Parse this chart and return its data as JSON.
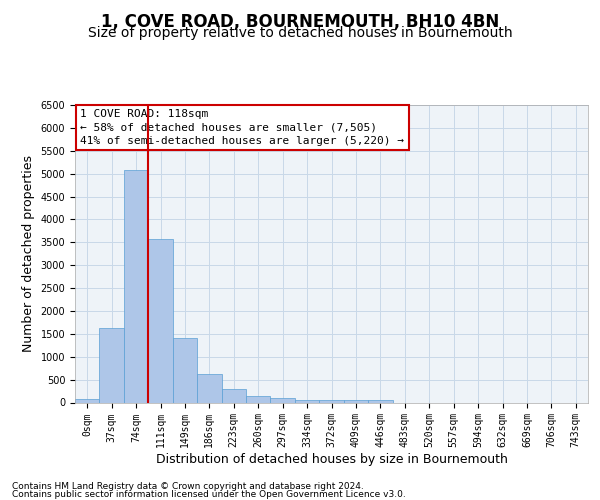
{
  "title": "1, COVE ROAD, BOURNEMOUTH, BH10 4BN",
  "subtitle": "Size of property relative to detached houses in Bournemouth",
  "xlabel": "Distribution of detached houses by size in Bournemouth",
  "ylabel": "Number of detached properties",
  "categories": [
    "0sqm",
    "37sqm",
    "74sqm",
    "111sqm",
    "149sqm",
    "186sqm",
    "223sqm",
    "260sqm",
    "297sqm",
    "334sqm",
    "372sqm",
    "409sqm",
    "446sqm",
    "483sqm",
    "520sqm",
    "557sqm",
    "594sqm",
    "632sqm",
    "669sqm",
    "706sqm",
    "743sqm"
  ],
  "bar_heights": [
    75,
    1625,
    5075,
    3575,
    1400,
    625,
    300,
    150,
    90,
    55,
    50,
    65,
    65,
    0,
    0,
    0,
    0,
    0,
    0,
    0,
    0
  ],
  "bar_color": "#aec6e8",
  "bar_edge_color": "#5a9fd4",
  "grid_color": "#c8d8e8",
  "background_color": "#eef3f8",
  "vline_color": "#cc0000",
  "annotation_line1": "1 COVE ROAD: 118sqm",
  "annotation_line2": "← 58% of detached houses are smaller (7,505)",
  "annotation_line3": "41% of semi-detached houses are larger (5,220) →",
  "annotation_box_color": "#ffffff",
  "annotation_box_edge": "#cc0000",
  "ylim": [
    0,
    6500
  ],
  "yticks": [
    0,
    500,
    1000,
    1500,
    2000,
    2500,
    3000,
    3500,
    4000,
    4500,
    5000,
    5500,
    6000,
    6500
  ],
  "footer_line1": "Contains HM Land Registry data © Crown copyright and database right 2024.",
  "footer_line2": "Contains public sector information licensed under the Open Government Licence v3.0.",
  "title_fontsize": 12,
  "subtitle_fontsize": 10,
  "xlabel_fontsize": 9,
  "ylabel_fontsize": 9,
  "tick_fontsize": 7,
  "annotation_fontsize": 8,
  "footer_fontsize": 6.5,
  "vline_pos": 2.5
}
